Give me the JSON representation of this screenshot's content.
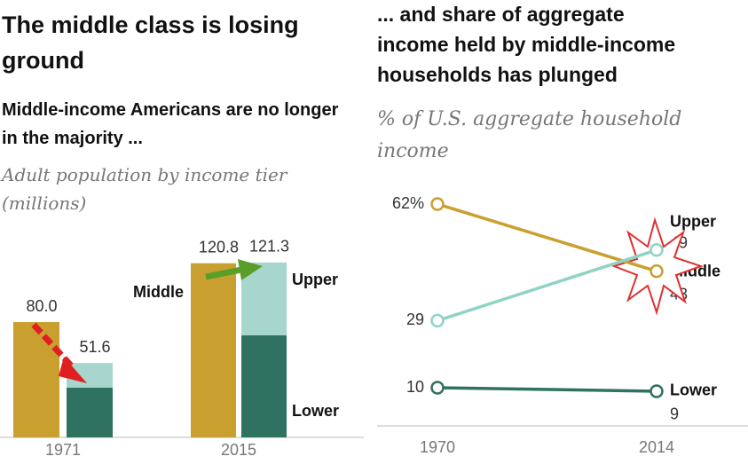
{
  "chart_data": [
    {
      "type": "bar",
      "title": "The middle class is losing ground",
      "subtitle": "Middle-income  Americans are no longer in the majority ...",
      "note": "Adult population by income tier (millions)",
      "categories": [
        "1971",
        "2015"
      ],
      "series": [
        {
          "name": "Middle",
          "color": "#c9a030",
          "values": [
            80.0,
            120.8
          ],
          "value_labels": [
            "80.0",
            "120.8"
          ]
        },
        {
          "name": "Lower",
          "color": "#2f7262",
          "values": [
            34.5,
            70.8
          ]
        },
        {
          "name": "Upper",
          "color": "#a6d6cd",
          "values": [
            17.1,
            50.5
          ]
        }
      ],
      "totals": [
        51.6,
        121.3
      ]
    },
    {
      "type": "line",
      "title": "... and share of aggregate income held by middle-income households has plunged",
      "subtitle": "% of U.S. aggregate household income",
      "x": [
        1970,
        2014
      ],
      "series": [
        {
          "name": "Middle",
          "color": "#c9a030",
          "values": [
            62,
            43
          ],
          "value_labels": [
            "62%",
            "43"
          ]
        },
        {
          "name": "Upper",
          "color": "#8fd3c6",
          "values": [
            29,
            49
          ]
        },
        {
          "name": "Lower",
          "color": "#2f7262",
          "values": [
            10,
            9
          ]
        }
      ]
    }
  ]
}
